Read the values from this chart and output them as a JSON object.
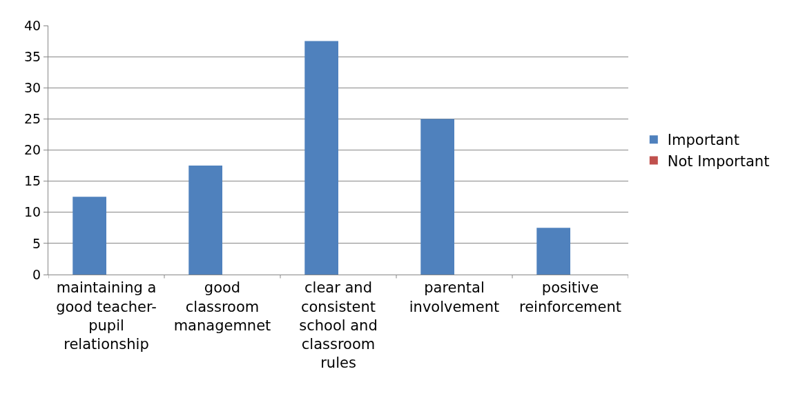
{
  "chart_data": {
    "type": "bar",
    "categories": [
      "maintaining a good teacher-pupil relationship",
      "good classroom managemnet",
      "clear and consistent school and classroom rules",
      "parental involvement",
      "positive reinforcement"
    ],
    "series": [
      {
        "name": "Important",
        "color": "#4f81bd",
        "values": [
          12.5,
          17.5,
          37.5,
          25,
          7.5
        ]
      },
      {
        "name": "Not Important",
        "color": "#c0504d",
        "values": [
          0,
          0,
          0,
          0,
          0
        ]
      }
    ],
    "ylim": [
      0,
      40
    ],
    "yticks": [
      0,
      5,
      10,
      15,
      20,
      25,
      30,
      35,
      40
    ],
    "grid": "y",
    "legend": "right"
  }
}
